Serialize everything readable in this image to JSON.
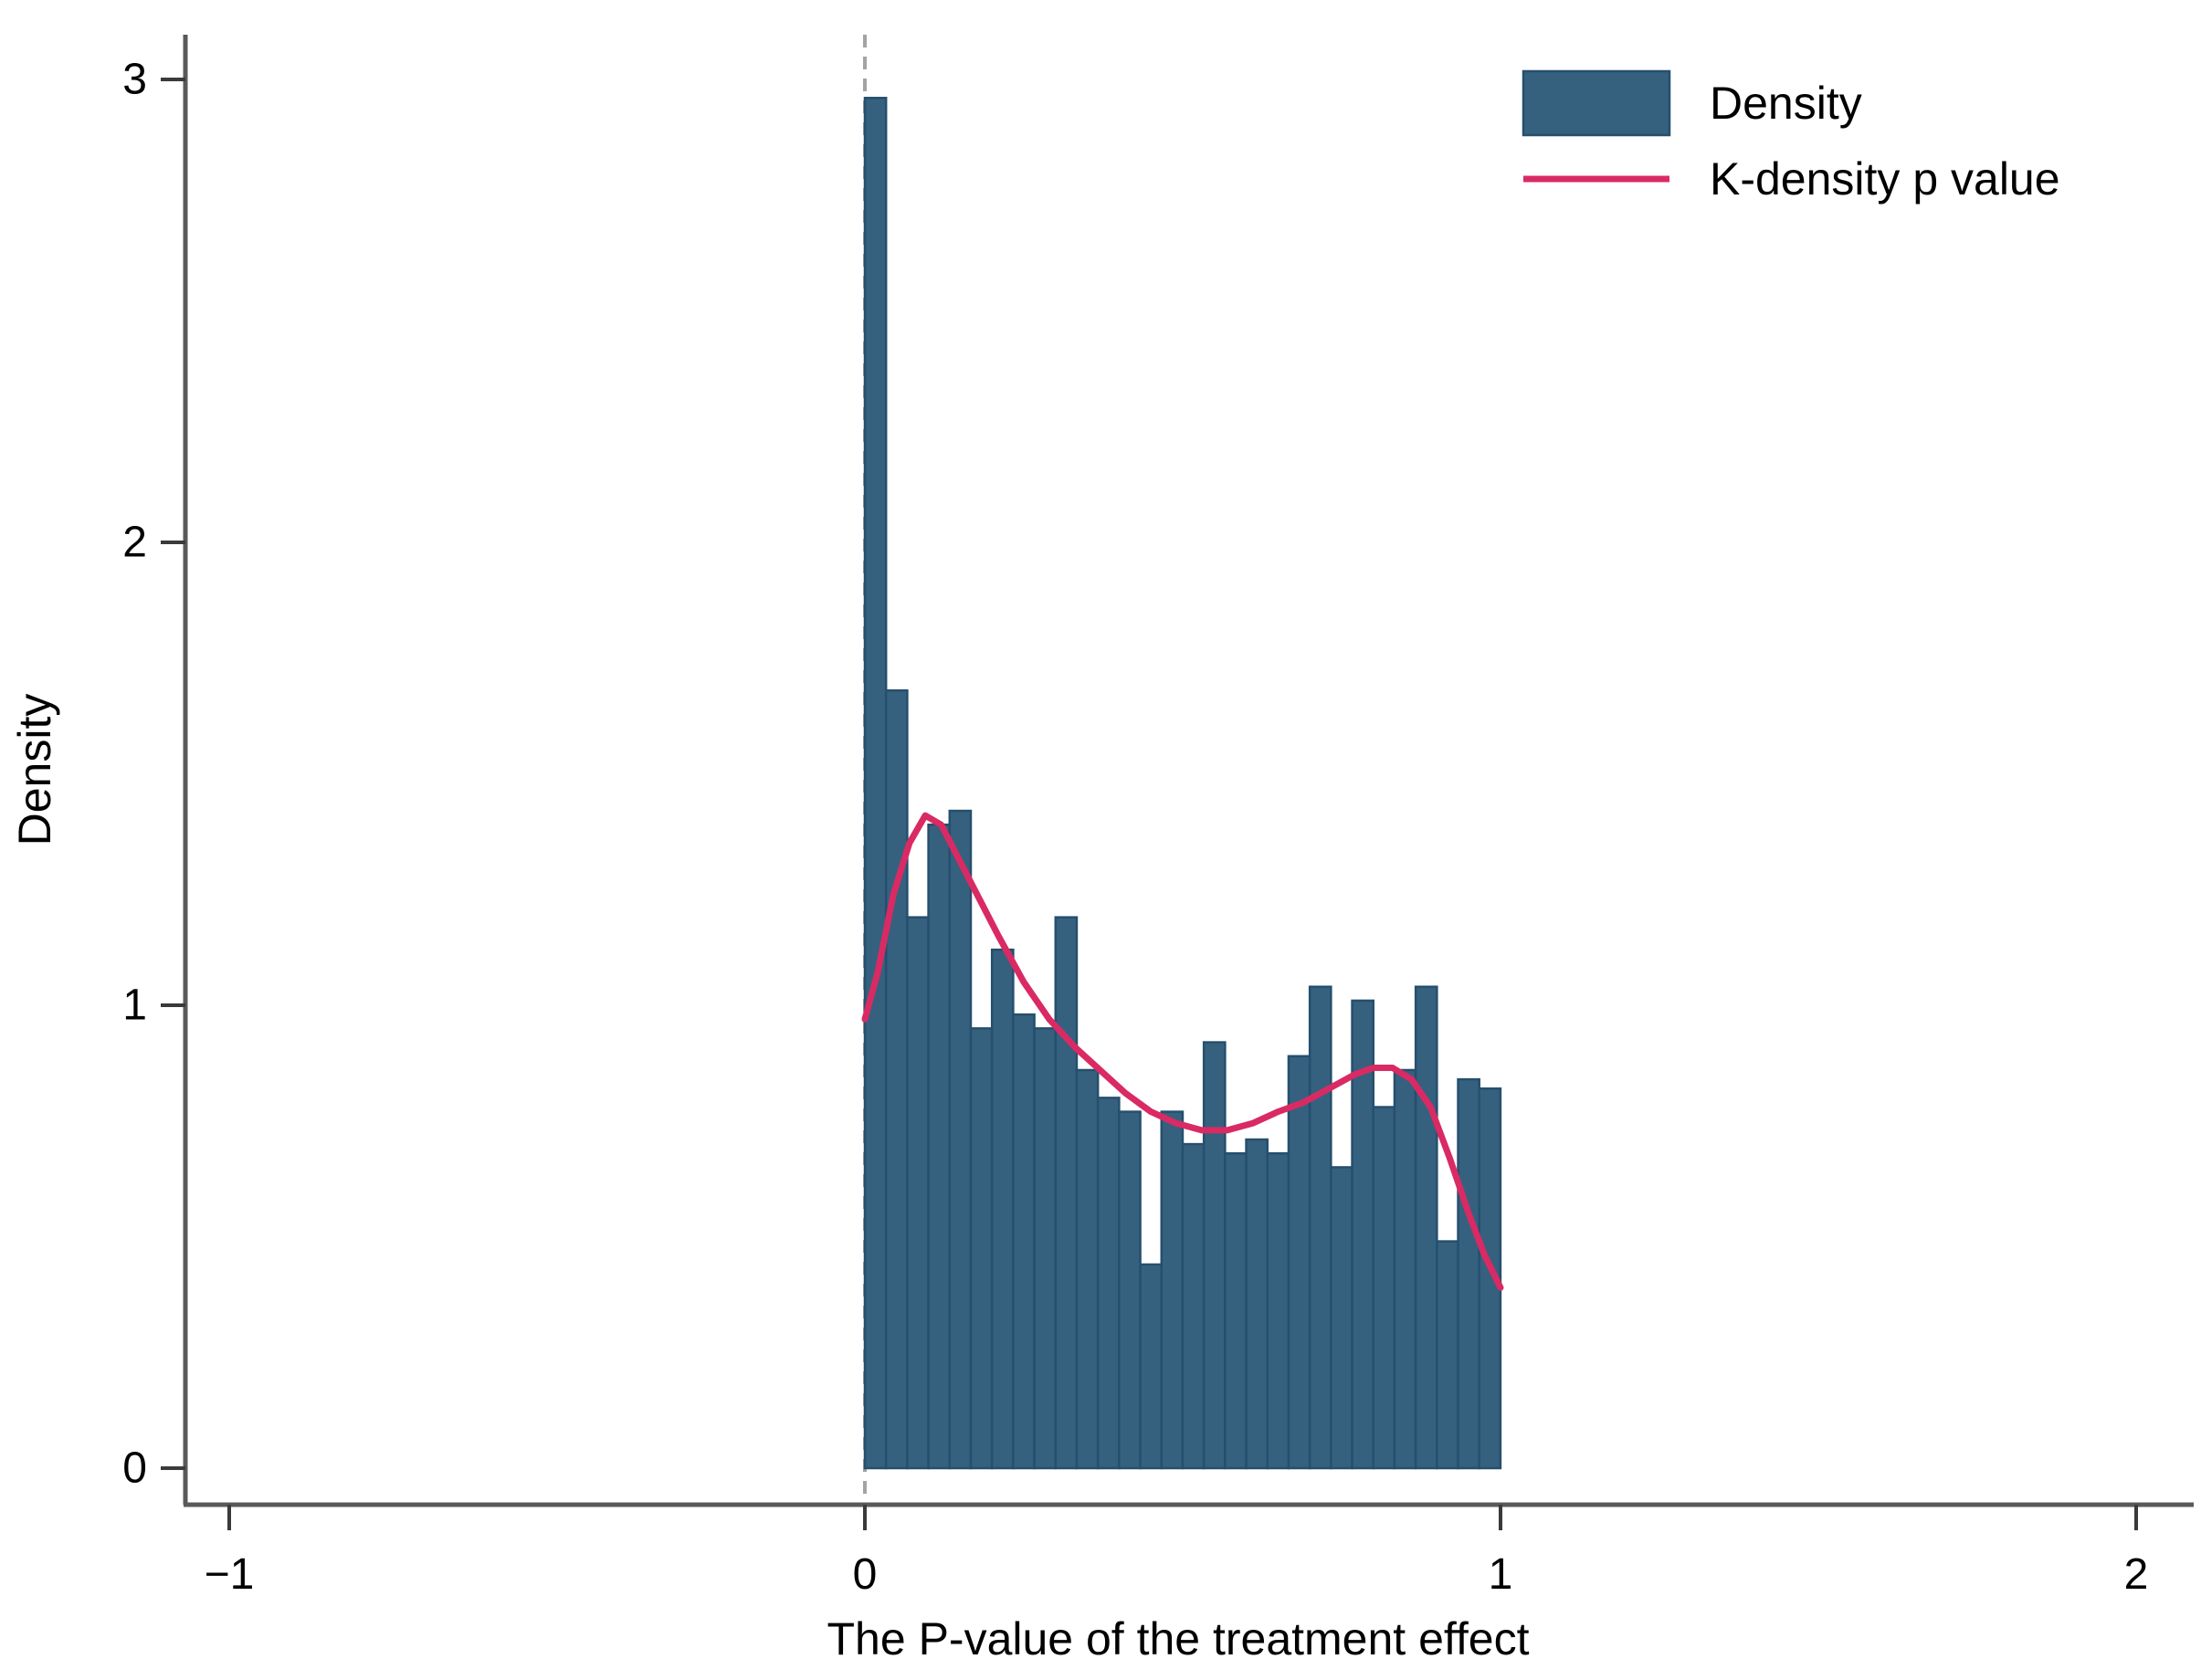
{
  "chart_data": {
    "type": "bar",
    "subtype": "histogram-with-kdensity-overlay",
    "title": "",
    "xlabel": "The P-value of the treatment effect",
    "ylabel": "Density",
    "xlim": [
      -1.07,
      2.09
    ],
    "ylim": [
      0,
      3
    ],
    "x_ticks": [
      {
        "value": -1,
        "label": "−1"
      },
      {
        "value": 0,
        "label": "0"
      },
      {
        "value": 1,
        "label": "1"
      },
      {
        "value": 2,
        "label": "2"
      }
    ],
    "y_ticks": [
      {
        "value": 0,
        "label": "0"
      },
      {
        "value": 1,
        "label": "1"
      },
      {
        "value": 2,
        "label": "2"
      },
      {
        "value": 3,
        "label": "3"
      }
    ],
    "grid": false,
    "zero_reference_line_x": 0,
    "histogram": {
      "bin_start": 0,
      "bin_width": 0.03333,
      "bin_count": 30,
      "values": [
        2.96,
        1.68,
        1.19,
        1.39,
        1.42,
        0.95,
        1.12,
        0.98,
        0.95,
        1.19,
        0.86,
        0.8,
        0.77,
        0.44,
        0.77,
        0.7,
        0.92,
        0.68,
        0.71,
        0.68,
        0.89,
        1.04,
        0.65,
        1.01,
        0.78,
        0.86,
        1.04,
        0.49,
        0.84,
        0.82
      ]
    },
    "kdensity_curve": [
      [
        0.0,
        0.97
      ],
      [
        0.02,
        1.07
      ],
      [
        0.045,
        1.24
      ],
      [
        0.07,
        1.35
      ],
      [
        0.095,
        1.41
      ],
      [
        0.12,
        1.39
      ],
      [
        0.15,
        1.31
      ],
      [
        0.18,
        1.23
      ],
      [
        0.21,
        1.15
      ],
      [
        0.25,
        1.05
      ],
      [
        0.29,
        0.97
      ],
      [
        0.33,
        0.91
      ],
      [
        0.37,
        0.86
      ],
      [
        0.41,
        0.81
      ],
      [
        0.45,
        0.77
      ],
      [
        0.49,
        0.745
      ],
      [
        0.53,
        0.73
      ],
      [
        0.57,
        0.73
      ],
      [
        0.61,
        0.745
      ],
      [
        0.65,
        0.77
      ],
      [
        0.69,
        0.79
      ],
      [
        0.73,
        0.82
      ],
      [
        0.77,
        0.85
      ],
      [
        0.8,
        0.865
      ],
      [
        0.83,
        0.865
      ],
      [
        0.86,
        0.84
      ],
      [
        0.89,
        0.78
      ],
      [
        0.92,
        0.67
      ],
      [
        0.95,
        0.55
      ],
      [
        0.975,
        0.46
      ],
      [
        1.0,
        0.39
      ]
    ],
    "legend": {
      "position": "top-right",
      "entries": [
        {
          "label": "Density",
          "marker": "box"
        },
        {
          "label": "K-density p value",
          "marker": "line"
        }
      ]
    },
    "colors": {
      "bar_fill": "#35617f",
      "bar_stroke": "#264f6e",
      "curve": "#d92a64",
      "axis_line": "#58595b",
      "tick_mark": "#3a3a3a",
      "text": "#000000",
      "dashed_line": "#a3a3a3",
      "background": "#ffffff"
    }
  }
}
